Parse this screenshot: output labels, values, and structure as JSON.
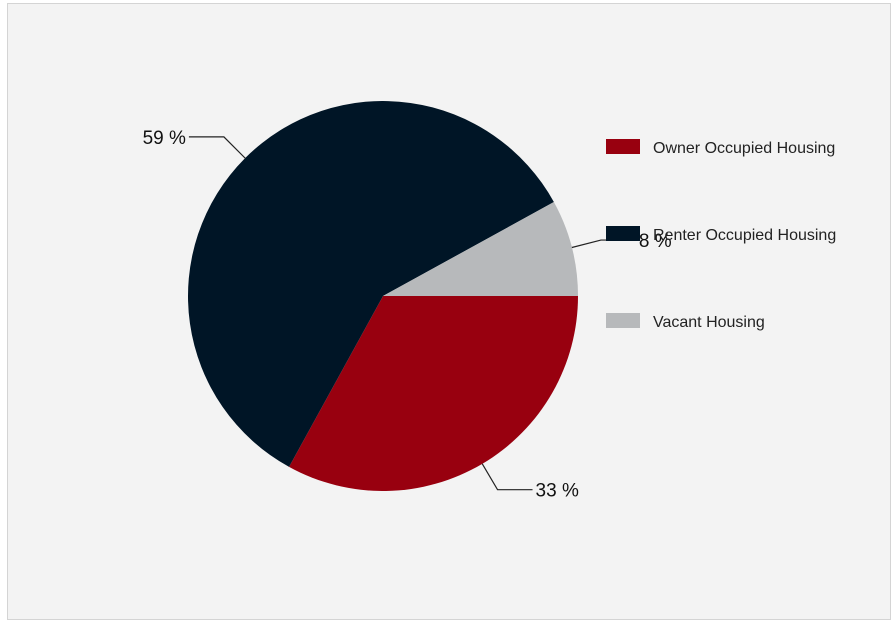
{
  "chart_data": {
    "type": "pie",
    "title": "",
    "legend_position": "right",
    "slices": [
      {
        "label": "Owner Occupied Housing",
        "value": 33,
        "value_label": "33 %",
        "color": "#98000f"
      },
      {
        "label": "Renter Occupied Housing",
        "value": 59,
        "value_label": "59 %",
        "color": "#001526"
      },
      {
        "label": "Vacant Housing",
        "value": 8,
        "value_label": "8 %",
        "color": "#b7b9bb"
      }
    ]
  }
}
